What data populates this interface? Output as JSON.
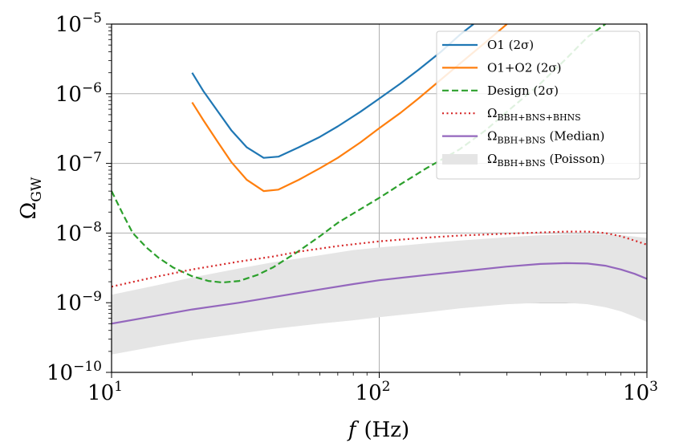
{
  "chart_data": {
    "type": "line",
    "xscale": "log",
    "yscale": "log",
    "xlim": [
      10,
      1000
    ],
    "ylim": [
      1e-10,
      1e-05
    ],
    "xlabel": {
      "main": "f",
      "unit": "(Hz)"
    },
    "ylabel": {
      "main": "Ω",
      "sub": "GW"
    },
    "grid": true,
    "legend_position": "upper-right",
    "x_ticks": [
      {
        "value": 10,
        "base": "10",
        "exp": "1"
      },
      {
        "value": 100,
        "base": "10",
        "exp": "2"
      },
      {
        "value": 1000,
        "base": "10",
        "exp": "3"
      }
    ],
    "y_ticks": [
      {
        "value": 1e-10,
        "base": "10",
        "exp": "−10"
      },
      {
        "value": 1e-09,
        "base": "10",
        "exp": "−9"
      },
      {
        "value": 1e-08,
        "base": "10",
        "exp": "−8"
      },
      {
        "value": 1e-07,
        "base": "10",
        "exp": "−7"
      },
      {
        "value": 1e-06,
        "base": "10",
        "exp": "−6"
      },
      {
        "value": 1e-05,
        "base": "10",
        "exp": "−5"
      }
    ],
    "series": [
      {
        "key": "o1",
        "name_main": "O1 (2σ)",
        "name_sub": "",
        "name_tail": "",
        "color": "#1f77b4",
        "style": "solid",
        "points": [
          [
            20,
            2e-06
          ],
          [
            22,
            1.1e-06
          ],
          [
            25,
            5.5e-07
          ],
          [
            28,
            3e-07
          ],
          [
            32,
            1.7e-07
          ],
          [
            37,
            1.2e-07
          ],
          [
            42,
            1.25e-07
          ],
          [
            50,
            1.7e-07
          ],
          [
            60,
            2.4e-07
          ],
          [
            70,
            3.4e-07
          ],
          [
            85,
            5.5e-07
          ],
          [
            100,
            8.5e-07
          ],
          [
            120,
            1.4e-06
          ],
          [
            140,
            2.2e-06
          ],
          [
            170,
            4e-06
          ],
          [
            200,
            7e-06
          ],
          [
            225,
            1e-05
          ]
        ]
      },
      {
        "key": "o1o2",
        "name_main": "O1+O2 (2σ)",
        "name_sub": "",
        "name_tail": "",
        "color": "#ff7f0e",
        "style": "solid",
        "points": [
          [
            20,
            7.5e-07
          ],
          [
            22,
            4.2e-07
          ],
          [
            25,
            2e-07
          ],
          [
            28,
            1.05e-07
          ],
          [
            32,
            5.8e-08
          ],
          [
            37,
            4e-08
          ],
          [
            42,
            4.2e-08
          ],
          [
            50,
            5.8e-08
          ],
          [
            60,
            8.5e-08
          ],
          [
            70,
            1.2e-07
          ],
          [
            85,
            2e-07
          ],
          [
            100,
            3.2e-07
          ],
          [
            120,
            5.3e-07
          ],
          [
            140,
            8.5e-07
          ],
          [
            170,
            1.6e-06
          ],
          [
            200,
            2.7e-06
          ],
          [
            250,
            5.5e-06
          ],
          [
            300,
            1e-05
          ]
        ]
      },
      {
        "key": "design",
        "name_main": "Design (2σ)",
        "name_sub": "",
        "name_tail": "",
        "color": "#2ca02c",
        "style": "dashed",
        "points": [
          [
            10,
            4e-08
          ],
          [
            11,
            1.9e-08
          ],
          [
            12,
            1e-08
          ],
          [
            13.5,
            6.2e-09
          ],
          [
            15,
            4.4e-09
          ],
          [
            17,
            3.2e-09
          ],
          [
            20,
            2.4e-09
          ],
          [
            23,
            2.05e-09
          ],
          [
            26,
            1.95e-09
          ],
          [
            30,
            2.05e-09
          ],
          [
            35,
            2.5e-09
          ],
          [
            40,
            3.2e-09
          ],
          [
            50,
            5.5e-09
          ],
          [
            60,
            9e-09
          ],
          [
            70,
            1.4e-08
          ],
          [
            85,
            2.2e-08
          ],
          [
            100,
            3.2e-08
          ],
          [
            120,
            5e-08
          ],
          [
            150,
            8.5e-08
          ],
          [
            200,
            1.6e-07
          ],
          [
            250,
            3e-07
          ],
          [
            300,
            5.5e-07
          ],
          [
            400,
            1.4e-06
          ],
          [
            500,
            3.2e-06
          ],
          [
            600,
            6.5e-06
          ],
          [
            700,
            1e-05
          ]
        ]
      },
      {
        "key": "total",
        "name_main": "Ω",
        "name_sub": "BBH+BNS+BHNS",
        "name_tail": "",
        "color": "#d62728",
        "style": "dotted",
        "points": [
          [
            10,
            1.7e-09
          ],
          [
            15,
            2.4e-09
          ],
          [
            20,
            3e-09
          ],
          [
            30,
            3.9e-09
          ],
          [
            40,
            4.6e-09
          ],
          [
            50,
            5.4e-09
          ],
          [
            70,
            6.5e-09
          ],
          [
            100,
            7.6e-09
          ],
          [
            150,
            8.6e-09
          ],
          [
            200,
            9.2e-09
          ],
          [
            300,
            9.8e-09
          ],
          [
            400,
            1.02e-08
          ],
          [
            500,
            1.05e-08
          ],
          [
            600,
            1.05e-08
          ],
          [
            700,
            1e-08
          ],
          [
            800,
            9e-09
          ],
          [
            900,
            7.8e-09
          ],
          [
            1000,
            6.8e-09
          ]
        ]
      },
      {
        "key": "median",
        "name_main": "Ω",
        "name_sub": "BBH+BNS",
        "name_tail": " (Median)",
        "color": "#9467bd",
        "style": "solid",
        "points": [
          [
            10,
            5e-10
          ],
          [
            15,
            6.6e-10
          ],
          [
            20,
            8e-10
          ],
          [
            30,
            1e-09
          ],
          [
            40,
            1.2e-09
          ],
          [
            60,
            1.55e-09
          ],
          [
            80,
            1.85e-09
          ],
          [
            100,
            2.1e-09
          ],
          [
            150,
            2.5e-09
          ],
          [
            200,
            2.8e-09
          ],
          [
            300,
            3.3e-09
          ],
          [
            400,
            3.6e-09
          ],
          [
            500,
            3.7e-09
          ],
          [
            600,
            3.65e-09
          ],
          [
            700,
            3.4e-09
          ],
          [
            800,
            3e-09
          ],
          [
            900,
            2.6e-09
          ],
          [
            1000,
            2.2e-09
          ]
        ]
      }
    ],
    "band": {
      "key": "poisson",
      "name_main": "Ω",
      "name_sub": "BBH+BNS",
      "name_tail": " (Poisson)",
      "color": "#e5e5e5",
      "upper": [
        [
          10,
          1.3e-09
        ],
        [
          15,
          1.8e-09
        ],
        [
          20,
          2.3e-09
        ],
        [
          30,
          3.1e-09
        ],
        [
          40,
          3.8e-09
        ],
        [
          60,
          4.8e-09
        ],
        [
          80,
          5.7e-09
        ],
        [
          100,
          6.2e-09
        ],
        [
          150,
          7.1e-09
        ],
        [
          200,
          7.8e-09
        ],
        [
          300,
          8.7e-09
        ],
        [
          400,
          9.3e-09
        ],
        [
          500,
          9.6e-09
        ],
        [
          600,
          9.7e-09
        ],
        [
          700,
          9.6e-09
        ],
        [
          800,
          9.3e-09
        ],
        [
          900,
          8.9e-09
        ],
        [
          1000,
          8.5e-09
        ]
      ],
      "lower": [
        [
          10,
          1.8e-10
        ],
        [
          15,
          2.4e-10
        ],
        [
          20,
          2.9e-10
        ],
        [
          30,
          3.6e-10
        ],
        [
          40,
          4.2e-10
        ],
        [
          60,
          5e-10
        ],
        [
          80,
          5.6e-10
        ],
        [
          100,
          6.2e-10
        ],
        [
          150,
          7.3e-10
        ],
        [
          200,
          8.3e-10
        ],
        [
          300,
          9.5e-10
        ],
        [
          400,
          1e-09
        ],
        [
          500,
          1e-09
        ],
        [
          600,
          9.5e-10
        ],
        [
          700,
          8.6e-10
        ],
        [
          800,
          7.5e-10
        ],
        [
          900,
          6.3e-10
        ],
        [
          1000,
          5.3e-10
        ]
      ]
    }
  }
}
